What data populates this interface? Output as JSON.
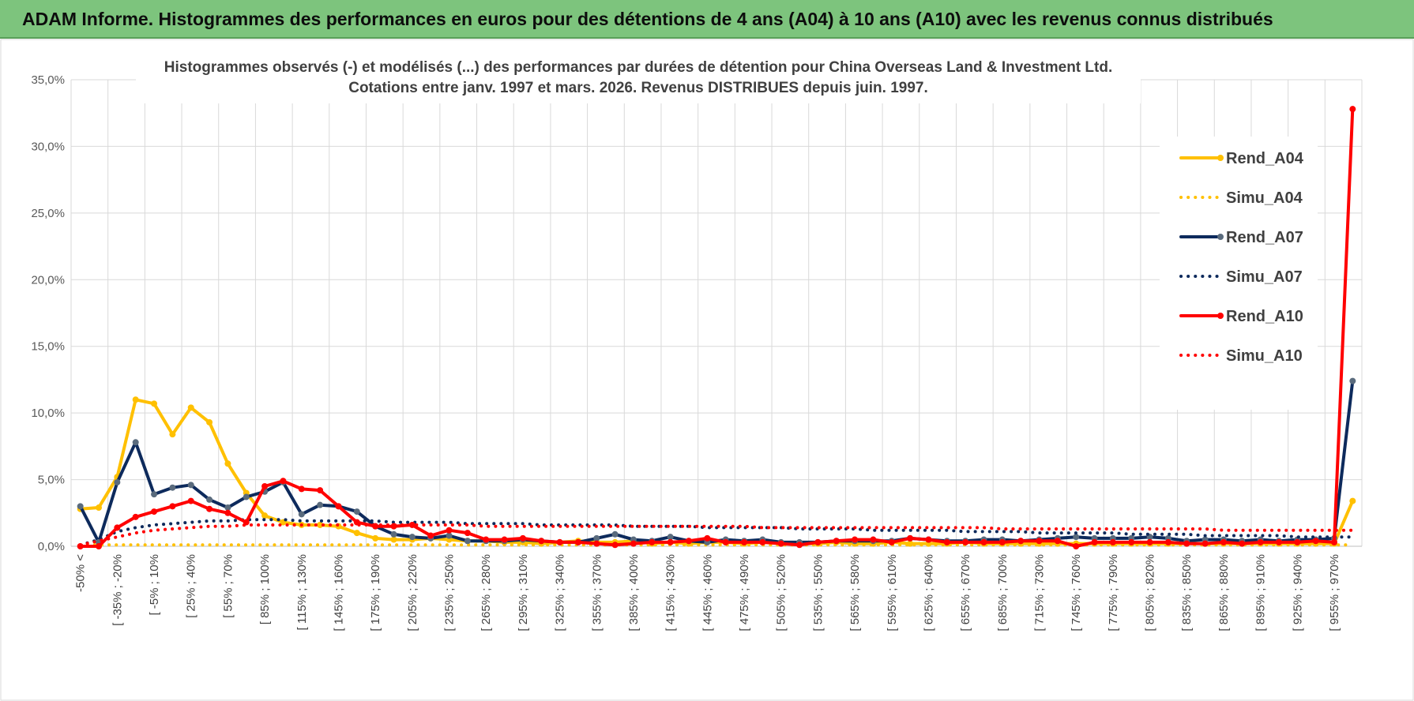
{
  "banner": {
    "title": "ADAM Informe. Histogrammes des performances en euros pour des détentions de 4 ans (A04) à 10 ans (A10) avec les revenus connus distribués"
  },
  "chart_data": {
    "type": "line",
    "title": "Histogrammes observés (-) et modélisés (...) des performances par durées de détention pour China Overseas Land & Investment Ltd.",
    "subtitle": "Cotations entre janv. 1997 et mars. 2026. Revenus DISTRIBUES depuis juin. 1997.",
    "xlabel": "",
    "ylabel": "",
    "ylim": [
      0,
      35
    ],
    "yticks": [
      "0,0%",
      "5,0%",
      "10,0%",
      "15,0%",
      "20,0%",
      "25,0%",
      "30,0%",
      "35,0%"
    ],
    "grid": true,
    "legend_position": "right",
    "x_tick_labels": [
      "-50% <",
      "[ -35% ; -20%",
      "[ -5% ; 10%",
      "[ 25% ; 40%",
      "[ 55% ; 70%",
      "[ 85% ; 100%",
      "[ 115% ; 130%",
      "[ 145% ; 160%",
      "[ 175% ; 190%",
      "[ 205% ; 220%",
      "[ 235% ; 250%",
      "[ 265% ; 280%",
      "[ 295% ; 310%",
      "[ 325% ; 340%",
      "[ 355% ; 370%",
      "[ 385% ; 400%",
      "[ 415% ; 430%",
      "[ 445% ; 460%",
      "[ 475% ; 490%",
      "[ 505% ; 520%",
      "[ 535% ; 550%",
      "[ 565% ; 580%",
      "[ 595% ; 610%",
      "[ 625% ; 640%",
      "[ 655% ; 670%",
      "[ 685% ; 700%",
      "[ 715% ; 730%",
      "[ 745% ; 760%",
      "[ 775% ; 790%",
      "[ 805% ; 820%",
      "[ 835% ; 850%",
      "[ 865% ; 880%",
      "[ 895% ; 910%",
      "[ 925% ; 940%",
      "[ 955% ; 970%"
    ],
    "x_tick_step": 2,
    "bins": 70,
    "series": [
      {
        "name": "Rend_A04",
        "style": "solid",
        "color": "#ffc000",
        "markers": true,
        "values": [
          2.8,
          2.9,
          5.2,
          11.0,
          10.7,
          8.4,
          10.4,
          9.3,
          6.2,
          4.0,
          2.3,
          1.8,
          1.6,
          1.6,
          1.5,
          1.0,
          0.6,
          0.5,
          0.5,
          0.6,
          0.5,
          0.4,
          0.4,
          0.3,
          0.3,
          0.2,
          0.3,
          0.4,
          0.3,
          0.3,
          0.4,
          0.2,
          0.3,
          0.2,
          0.3,
          0.3,
          0.2,
          0.3,
          0.2,
          0.2,
          0.2,
          0.3,
          0.2,
          0.2,
          0.3,
          0.2,
          0.2,
          0.2,
          0.3,
          0.2,
          0.2,
          0.2,
          0.2,
          0.2,
          0.2,
          0.2,
          0.2,
          0.2,
          0.2,
          0.2,
          0.2,
          0.2,
          0.2,
          0.2,
          0.2,
          0.2,
          0.2,
          0.2,
          0.2,
          3.4
        ]
      },
      {
        "name": "Simu_A04",
        "style": "dotted",
        "color": "#ffc000",
        "markers": false,
        "values": [
          0.1,
          0.1,
          0.1,
          0.1,
          0.1,
          0.1,
          0.1,
          0.1,
          0.1,
          0.1,
          0.1,
          0.1,
          0.1,
          0.1,
          0.1,
          0.1,
          0.1,
          0.1,
          0.1,
          0.1,
          0.1,
          0.1,
          0.1,
          0.1,
          0.1,
          0.1,
          0.1,
          0.1,
          0.1,
          0.1,
          0.1,
          0.1,
          0.1,
          0.1,
          0.1,
          0.1,
          0.1,
          0.1,
          0.1,
          0.1,
          0.1,
          0.1,
          0.1,
          0.1,
          0.1,
          0.1,
          0.1,
          0.1,
          0.1,
          0.1,
          0.1,
          0.1,
          0.1,
          0.1,
          0.1,
          0.1,
          0.1,
          0.1,
          0.1,
          0.1,
          0.1,
          0.1,
          0.1,
          0.1,
          0.1,
          0.1,
          0.1,
          0.1,
          0.1,
          0.1
        ]
      },
      {
        "name": "Rend_A07",
        "style": "solid",
        "color": "#0d2a5c",
        "markers": true,
        "values": [
          3.0,
          0.3,
          4.8,
          7.8,
          3.9,
          4.4,
          4.6,
          3.5,
          2.9,
          3.7,
          4.1,
          4.8,
          2.4,
          3.1,
          3.0,
          2.6,
          1.5,
          0.9,
          0.7,
          0.6,
          0.8,
          0.4,
          0.4,
          0.4,
          0.5,
          0.4,
          0.3,
          0.3,
          0.6,
          0.9,
          0.5,
          0.4,
          0.7,
          0.4,
          0.3,
          0.5,
          0.4,
          0.5,
          0.3,
          0.3,
          0.3,
          0.4,
          0.4,
          0.4,
          0.4,
          0.6,
          0.5,
          0.4,
          0.4,
          0.5,
          0.5,
          0.4,
          0.5,
          0.6,
          0.7,
          0.6,
          0.6,
          0.6,
          0.7,
          0.6,
          0.4,
          0.5,
          0.5,
          0.4,
          0.5,
          0.4,
          0.5,
          0.5,
          0.6,
          12.4
        ]
      },
      {
        "name": "Simu_A07",
        "style": "dotted",
        "color": "#0d2a5c",
        "markers": false,
        "values": [
          0.1,
          0.5,
          1.1,
          1.4,
          1.6,
          1.7,
          1.8,
          1.9,
          1.9,
          2.0,
          2.0,
          2.0,
          1.9,
          1.9,
          1.9,
          1.9,
          1.9,
          1.8,
          1.8,
          1.8,
          1.8,
          1.7,
          1.7,
          1.7,
          1.7,
          1.6,
          1.6,
          1.6,
          1.6,
          1.6,
          1.5,
          1.5,
          1.5,
          1.5,
          1.4,
          1.4,
          1.4,
          1.4,
          1.4,
          1.3,
          1.3,
          1.3,
          1.3,
          1.2,
          1.2,
          1.2,
          1.2,
          1.2,
          1.1,
          1.1,
          1.1,
          1.1,
          1.0,
          1.0,
          1.0,
          1.0,
          1.0,
          0.9,
          0.9,
          0.9,
          0.9,
          0.8,
          0.8,
          0.8,
          0.8,
          0.8,
          0.7,
          0.7,
          0.7,
          0.7
        ]
      },
      {
        "name": "Rend_A10",
        "style": "solid",
        "color": "#ff0000",
        "markers": true,
        "values": [
          0.0,
          0.0,
          1.4,
          2.2,
          2.6,
          3.0,
          3.4,
          2.8,
          2.5,
          1.8,
          4.5,
          4.9,
          4.3,
          4.2,
          3.0,
          1.8,
          1.5,
          1.5,
          1.6,
          0.8,
          1.2,
          1.0,
          0.5,
          0.5,
          0.6,
          0.4,
          0.3,
          0.3,
          0.2,
          0.1,
          0.2,
          0.3,
          0.3,
          0.4,
          0.6,
          0.3,
          0.3,
          0.3,
          0.2,
          0.1,
          0.3,
          0.4,
          0.5,
          0.5,
          0.3,
          0.6,
          0.5,
          0.3,
          0.3,
          0.3,
          0.3,
          0.4,
          0.4,
          0.4,
          0.0,
          0.3,
          0.3,
          0.3,
          0.3,
          0.3,
          0.2,
          0.2,
          0.3,
          0.2,
          0.3,
          0.3,
          0.3,
          0.4,
          0.3,
          32.8
        ]
      },
      {
        "name": "Simu_A10",
        "style": "dotted",
        "color": "#ff0000",
        "markers": false,
        "values": [
          0.1,
          0.4,
          0.7,
          1.0,
          1.2,
          1.3,
          1.4,
          1.5,
          1.5,
          1.6,
          1.6,
          1.6,
          1.6,
          1.6,
          1.6,
          1.6,
          1.6,
          1.6,
          1.6,
          1.6,
          1.6,
          1.6,
          1.5,
          1.5,
          1.5,
          1.5,
          1.5,
          1.5,
          1.5,
          1.5,
          1.5,
          1.5,
          1.5,
          1.5,
          1.5,
          1.5,
          1.5,
          1.4,
          1.4,
          1.4,
          1.4,
          1.4,
          1.4,
          1.4,
          1.4,
          1.4,
          1.4,
          1.4,
          1.4,
          1.4,
          1.3,
          1.3,
          1.3,
          1.3,
          1.3,
          1.3,
          1.3,
          1.3,
          1.3,
          1.3,
          1.3,
          1.3,
          1.2,
          1.2,
          1.2,
          1.2,
          1.2,
          1.2,
          1.2,
          1.2
        ]
      }
    ]
  }
}
